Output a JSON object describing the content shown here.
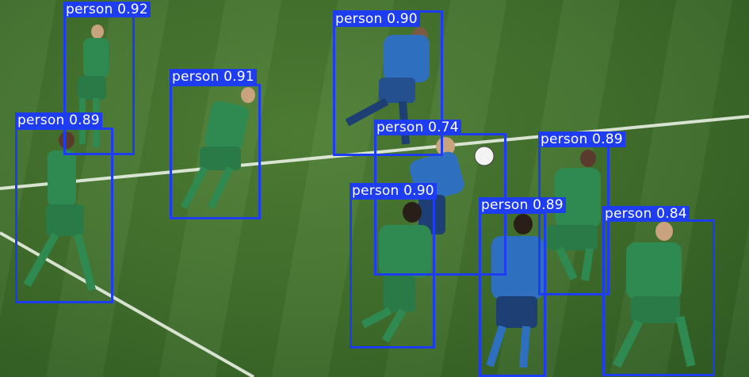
{
  "image": {
    "description_colors": {
      "box": "#1f3df0",
      "label_text": "#ffffff",
      "pitch": "#3f6e2b",
      "green_kit": "#2f8a52",
      "blue_kit": "#2f6fc0"
    }
  },
  "detections": [
    {
      "label": "person",
      "score": "0.92"
    },
    {
      "label": "person",
      "score": "0.91"
    },
    {
      "label": "person",
      "score": "0.89"
    },
    {
      "label": "person",
      "score": "0.90"
    },
    {
      "label": "person",
      "score": "0.74"
    },
    {
      "label": "person",
      "score": "0.90"
    },
    {
      "label": "person",
      "score": "0.89"
    },
    {
      "label": "person",
      "score": "0.89"
    },
    {
      "label": "person",
      "score": "0.84"
    }
  ]
}
